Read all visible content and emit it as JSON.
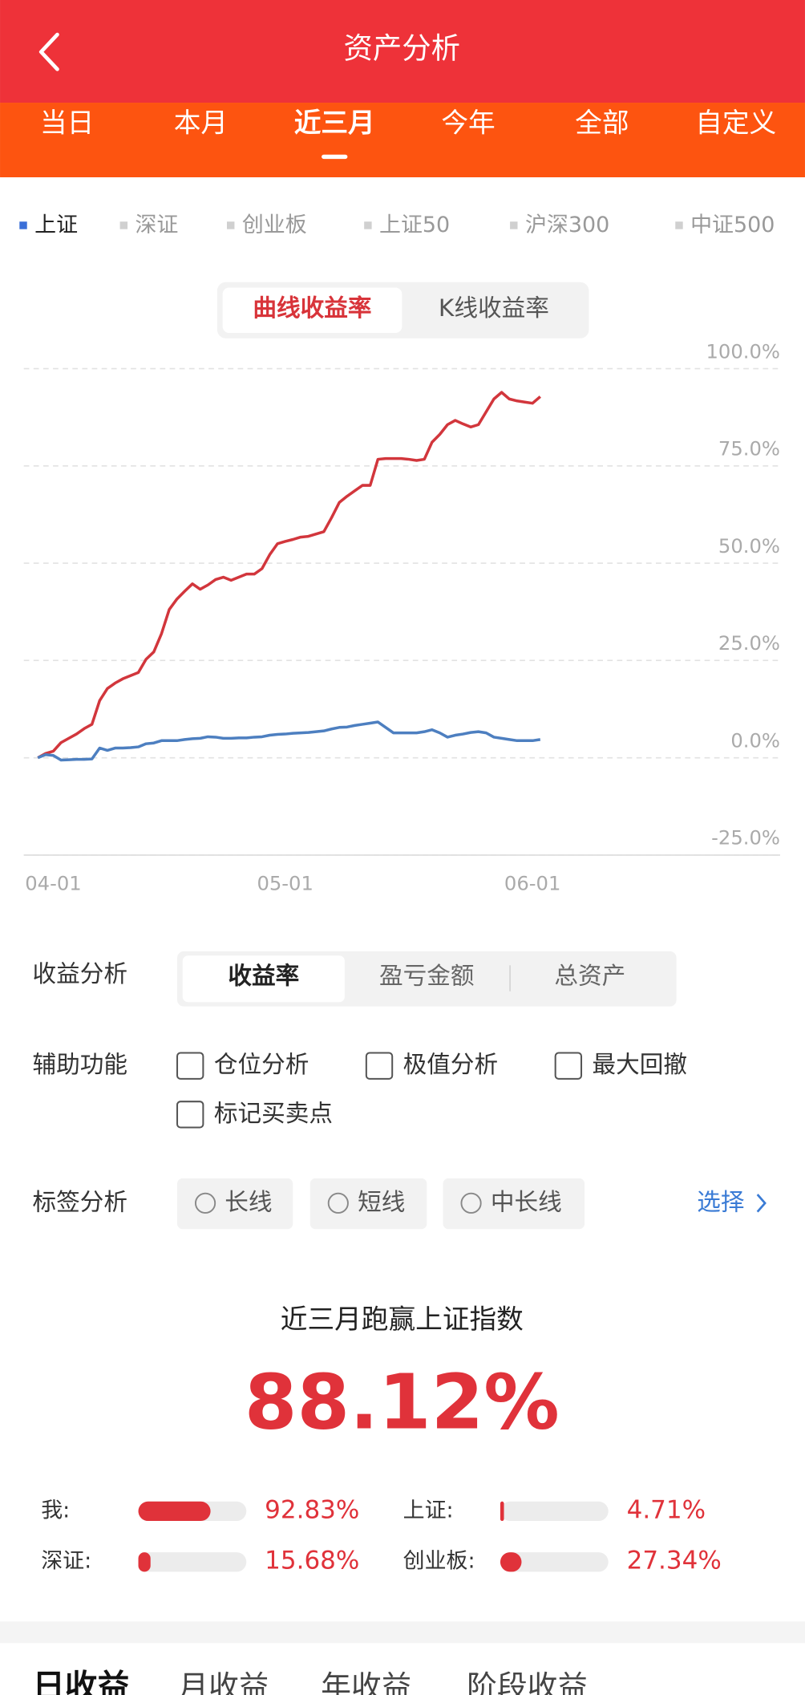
{
  "header": {
    "title": "资产分析"
  },
  "period_tabs": {
    "items": [
      "当日",
      "本月",
      "近三月",
      "今年",
      "全部",
      "自定义"
    ],
    "active": 2
  },
  "index_options": {
    "items": [
      "上证",
      "深证",
      "创业板",
      "上证50",
      "沪深300",
      "中证500"
    ],
    "active": 0,
    "active_color": "#3a6fd8"
  },
  "chart_mode": {
    "items": [
      "曲线收益率",
      "K线收益率"
    ],
    "active": 0
  },
  "chart_data": [
    {
      "type": "line",
      "categories": [
        null,
        null,
        "04-01",
        null,
        null,
        null,
        null,
        null,
        null,
        null,
        null,
        null,
        null,
        null,
        null,
        null,
        null,
        null,
        null,
        null,
        null,
        null,
        null,
        null,
        null,
        null,
        null,
        null,
        null,
        null,
        null,
        null,
        "05-01",
        null,
        null,
        null,
        null,
        null,
        null,
        null,
        null,
        null,
        null,
        null,
        null,
        null,
        null,
        null,
        null,
        null,
        null,
        null,
        null,
        null,
        null,
        null,
        null,
        null,
        null,
        null,
        null,
        null,
        null,
        null,
        "06-01",
        null
      ],
      "series": [
        {
          "color": "#d2363c",
          "values": [
            0,
            1.1,
            1.7,
            3.9,
            5.0,
            6.1,
            7.5,
            8.6,
            14.7,
            17.8,
            19.2,
            20.3,
            21.1,
            21.9,
            25.3,
            27.2,
            31.9,
            38.1,
            40.8,
            42.8,
            44.7,
            43.3,
            44.4,
            45.8,
            46.4,
            45.6,
            46.4,
            47.2,
            47.2,
            48.6,
            52.2,
            55.0,
            55.6,
            56.1,
            56.7,
            56.9,
            57.5,
            58.1,
            61.7,
            65.6,
            67.2,
            68.6,
            70.0,
            70.0,
            76.7,
            76.9,
            76.9,
            76.9,
            76.7,
            76.4,
            76.7,
            81.1,
            83.1,
            85.6,
            86.7,
            85.8,
            85.0,
            85.6,
            88.9,
            92.2,
            93.9,
            92.2,
            91.7,
            91.4,
            91.1,
            92.8
          ]
        },
        {
          "color": "#4d7fc0",
          "values": [
            0,
            0.8,
            0.6,
            -0.6,
            -0.5,
            -0.4,
            -0.4,
            -0.3,
            2.5,
            1.9,
            2.5,
            2.5,
            2.6,
            2.8,
            3.6,
            3.8,
            4.4,
            4.4,
            4.4,
            4.7,
            4.9,
            5.0,
            5.4,
            5.3,
            5.0,
            5.0,
            5.1,
            5.1,
            5.3,
            5.4,
            5.8,
            6.0,
            6.1,
            6.3,
            6.4,
            6.5,
            6.7,
            6.9,
            7.4,
            7.8,
            7.9,
            8.3,
            8.6,
            8.9,
            9.2,
            7.8,
            6.4,
            6.4,
            6.4,
            6.4,
            6.7,
            7.2,
            6.4,
            5.3,
            5.8,
            6.1,
            6.5,
            6.7,
            6.4,
            5.3,
            5.0,
            4.7,
            4.4,
            4.4,
            4.4,
            4.7
          ]
        }
      ],
      "ylim": [
        -25,
        100
      ],
      "yticks": [
        {
          "value": 100,
          "label": "100.0%"
        },
        {
          "value": 75,
          "label": "75.0%"
        },
        {
          "value": 50,
          "label": "50.0%"
        },
        {
          "value": 25,
          "label": "25.0%"
        },
        {
          "value": 0,
          "label": "0.0%"
        },
        {
          "value": -25,
          "label": "-25.0%"
        }
      ],
      "grid": true
    },
    {
      "type": "bar",
      "categories": [
        "我:",
        "上证:",
        "深证:",
        "创业板:"
      ],
      "values": [
        92.83,
        4.71,
        15.68,
        27.34
      ],
      "value_labels": [
        "92.83%",
        "4.71%",
        "15.68%",
        "27.34%"
      ],
      "color": "#e0323a"
    }
  ],
  "analysis": {
    "label": "收益分析",
    "items": [
      "收益率",
      "盈亏金额",
      "总资产"
    ],
    "active": 0
  },
  "tools": {
    "label": "辅助功能",
    "items": [
      "仓位分析",
      "极值分析",
      "最大回撤",
      "标记买卖点"
    ]
  },
  "tags": {
    "label": "标签分析",
    "items": [
      "长线",
      "短线",
      "中长线"
    ],
    "action": "选择"
  },
  "summary": {
    "title": "近三月跑赢上证指数",
    "headline": "88.12%"
  },
  "bottom_tabs": {
    "items": [
      "日收益",
      "月收益",
      "年收益",
      "阶段收益"
    ],
    "active": 0
  }
}
